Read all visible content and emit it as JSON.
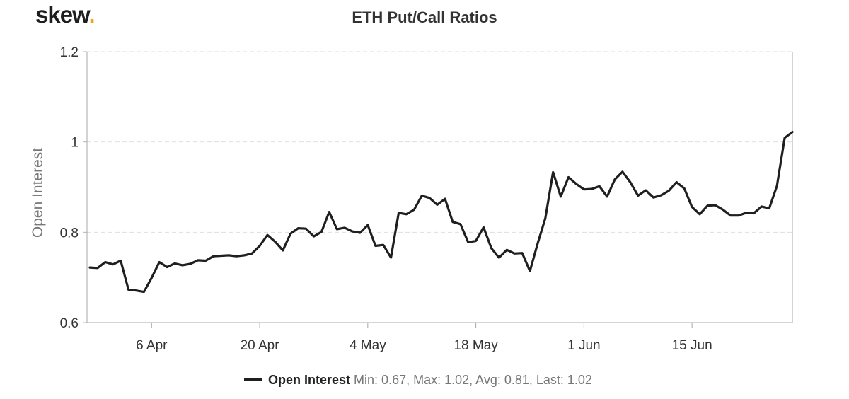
{
  "brand": {
    "logo_text": "skew",
    "logo_dot": ".",
    "accent_color": "#f0a31c"
  },
  "chart_data": {
    "type": "line",
    "title": "ETH Put/Call Ratios",
    "ylabel": "Open Interest",
    "xlabel": "",
    "ylim": [
      0.6,
      1.2
    ],
    "yticks": [
      0.6,
      0.8,
      1,
      1.2
    ],
    "ytick_labels": [
      "0.6",
      "0.8",
      "1",
      "1.2"
    ],
    "xtick_labels": [
      "6 Apr",
      "20 Apr",
      "4 May",
      "18 May",
      "1 Jun",
      "15 Jun"
    ],
    "xtick_index": [
      8,
      22,
      36,
      50,
      64,
      78
    ],
    "grid": true,
    "line_color": "#1f1f1f",
    "series": [
      {
        "name": "Open Interest",
        "values": [
          0.722,
          0.721,
          0.734,
          0.729,
          0.737,
          0.673,
          0.671,
          0.668,
          0.699,
          0.734,
          0.723,
          0.731,
          0.727,
          0.73,
          0.738,
          0.737,
          0.747,
          0.748,
          0.749,
          0.747,
          0.749,
          0.753,
          0.77,
          0.794,
          0.779,
          0.76,
          0.797,
          0.809,
          0.808,
          0.791,
          0.801,
          0.845,
          0.807,
          0.81,
          0.802,
          0.799,
          0.816,
          0.77,
          0.772,
          0.744,
          0.843,
          0.84,
          0.85,
          0.881,
          0.876,
          0.861,
          0.874,
          0.823,
          0.818,
          0.778,
          0.781,
          0.811,
          0.765,
          0.744,
          0.761,
          0.753,
          0.754,
          0.714,
          0.775,
          0.831,
          0.933,
          0.879,
          0.922,
          0.907,
          0.895,
          0.896,
          0.902,
          0.879,
          0.917,
          0.934,
          0.911,
          0.881,
          0.893,
          0.877,
          0.882,
          0.892,
          0.911,
          0.897,
          0.856,
          0.84,
          0.859,
          0.86,
          0.85,
          0.837,
          0.837,
          0.843,
          0.842,
          0.857,
          0.853,
          0.903,
          1.009,
          1.022
        ]
      }
    ]
  },
  "legend": {
    "name": "Open Interest",
    "stats": "Min: 0.67, Max: 1.02, Avg: 0.81, Last: 1.02"
  }
}
